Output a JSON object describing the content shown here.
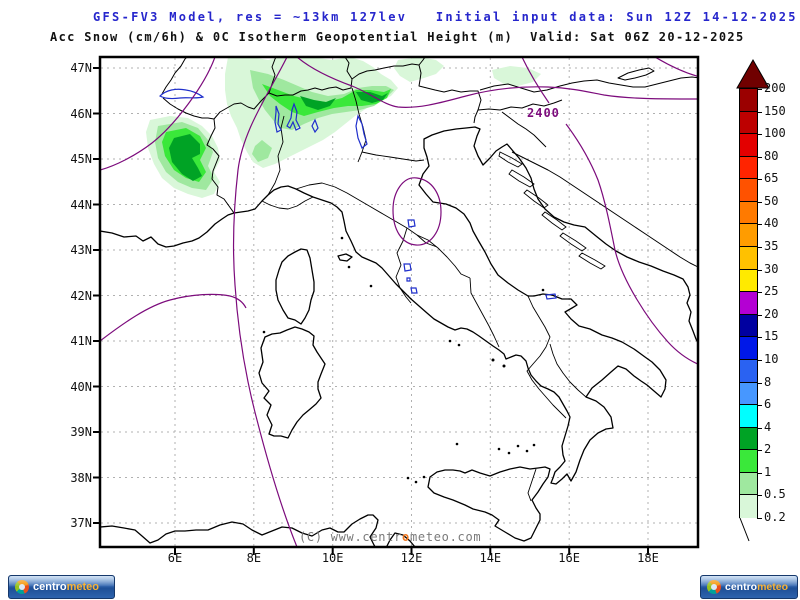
{
  "header": {
    "model_line": "GFS-FV3 Model, res = ~13km 127lev   Initial input data: Sun 12Z 14-12-2025",
    "valid_line": "Acc Snow (cm/6h) & 0C Isotherm Geopotential Height (m)  Valid: Sat 06Z 20-12-2025"
  },
  "map": {
    "contour_label": "2400",
    "watermark": {
      "part1": "(C) www.centr",
      "part2": "o",
      "part3": "meteo.com"
    },
    "axes": {
      "lat": [
        "47N",
        "46N",
        "45N",
        "44N",
        "43N",
        "42N",
        "41N",
        "40N",
        "39N",
        "38N",
        "37N"
      ],
      "lon": [
        "6E",
        "8E",
        "10E",
        "12E",
        "14E",
        "16E",
        "18E"
      ]
    }
  },
  "legend": {
    "labels": [
      "200",
      "150",
      "100",
      "80",
      "65",
      "50",
      "40",
      "35",
      "30",
      "25",
      "20",
      "15",
      "10",
      "8",
      "6",
      "4",
      "2",
      "1",
      "0.5",
      "0.2"
    ],
    "colors": [
      "#9b0000",
      "#bd0000",
      "#e30000",
      "#ff2400",
      "#ff5200",
      "#ff7a00",
      "#ff9c00",
      "#ffc100",
      "#ffea00",
      "#b400d3",
      "#0000a0",
      "#0018e8",
      "#2a62f2",
      "#4797ff",
      "#00ffff",
      "#00a325",
      "#3ae83a",
      "#9fe89f",
      "#d9f7d9"
    ],
    "arrow_color": "#700000"
  },
  "branding": {
    "brand_first": "centro",
    "brand_second": "meteo"
  },
  "colors": {
    "title_blue": "#2626cc",
    "contour": "#7c0b7c",
    "lake": "#1f2fcc",
    "coast": "#000000",
    "snow_l1": "#d9f7d9",
    "snow_l2": "#9fe89f",
    "snow_l3": "#3ae83a",
    "snow_l4": "#00a325"
  }
}
